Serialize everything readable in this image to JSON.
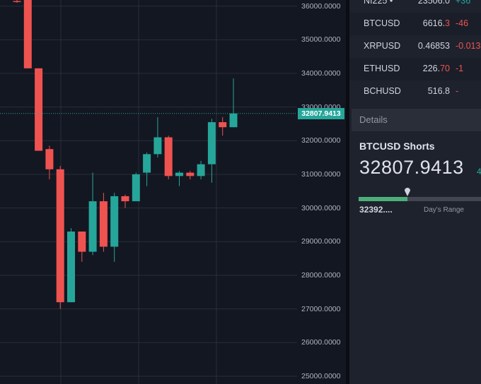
{
  "colors": {
    "up": "#26a69a",
    "down": "#ef5350",
    "background": "#131722",
    "panel": "#1e222d",
    "grid": "#2a2e39"
  },
  "chart": {
    "symbol": "BTCUSD",
    "last_price_label": "32807.9413",
    "price_ticks": [
      "36000.0000",
      "35000.0000",
      "34000.0000",
      "33000.0000",
      "32000.0000",
      "31000.0000",
      "30000.0000",
      "29000.0000",
      "28000.0000",
      "27000.0000",
      "26000.0000",
      "25000.0000"
    ]
  },
  "chart_data": {
    "type": "candlestick",
    "y_axis_labels": [
      "36000.0000",
      "35000.0000",
      "34000.0000",
      "33000.0000",
      "32000.0000",
      "31000.0000",
      "30000.0000",
      "29000.0000",
      "28000.0000",
      "27000.0000",
      "26000.0000",
      "25000.0000"
    ],
    "ylim": [
      24770,
      36180
    ],
    "last_price": 32807.9413,
    "candles": [
      {
        "o": 36150,
        "h": 36200,
        "l": 36100,
        "c": 36120
      },
      {
        "o": 36180,
        "h": 36200,
        "l": 34150,
        "c": 34150
      },
      {
        "o": 34150,
        "h": 34150,
        "l": 31700,
        "c": 31700
      },
      {
        "o": 31750,
        "h": 31850,
        "l": 30850,
        "c": 31150
      },
      {
        "o": 31150,
        "h": 31250,
        "l": 27000,
        "c": 27200
      },
      {
        "o": 27200,
        "h": 29400,
        "l": 27200,
        "c": 29300
      },
      {
        "o": 29300,
        "h": 29300,
        "l": 28400,
        "c": 28700
      },
      {
        "o": 28700,
        "h": 31050,
        "l": 28600,
        "c": 30200
      },
      {
        "o": 30200,
        "h": 30450,
        "l": 28700,
        "c": 28850
      },
      {
        "o": 28850,
        "h": 30450,
        "l": 28400,
        "c": 30350
      },
      {
        "o": 30350,
        "h": 30400,
        "l": 30000,
        "c": 30200
      },
      {
        "o": 30200,
        "h": 31050,
        "l": 30200,
        "c": 31000
      },
      {
        "o": 31050,
        "h": 31650,
        "l": 30650,
        "c": 31600
      },
      {
        "o": 31600,
        "h": 32700,
        "l": 31500,
        "c": 32100
      },
      {
        "o": 32100,
        "h": 32150,
        "l": 30850,
        "c": 30950
      },
      {
        "o": 30950,
        "h": 31100,
        "l": 30650,
        "c": 31050
      },
      {
        "o": 31050,
        "h": 31100,
        "l": 30850,
        "c": 30950
      },
      {
        "o": 30950,
        "h": 31400,
        "l": 30850,
        "c": 31300
      },
      {
        "o": 31300,
        "h": 32650,
        "l": 30750,
        "c": 32550
      },
      {
        "o": 32550,
        "h": 32700,
        "l": 32150,
        "c": 32400
      },
      {
        "o": 32400,
        "h": 33850,
        "l": 32400,
        "c": 32807.9413
      }
    ]
  },
  "watchlist": [
    {
      "symbol": "NI225 •",
      "price_main": "23506.0",
      "price_tail": "",
      "change": "+36",
      "dir": "green"
    },
    {
      "symbol": "BTCUSD",
      "price_main": "6616.",
      "price_tail": "3",
      "change": "-46",
      "dir": "red"
    },
    {
      "symbol": "XRPUSD",
      "price_main": "0.46853",
      "price_tail": "",
      "change": "-0.013",
      "dir": "red"
    },
    {
      "symbol": "ETHUSD",
      "price_main": "226.",
      "price_tail": "70",
      "change": "-1",
      "dir": "red"
    },
    {
      "symbol": "BCHUSD",
      "price_main": "516.8",
      "price_tail": "",
      "change": "-",
      "dir": "red"
    }
  ],
  "details": {
    "header": "Details",
    "title": "BTCUSD Shorts",
    "price": "32807.9413",
    "change": "4",
    "range_low": "32392....",
    "range_label": "Day's Range",
    "range_position": 0.385
  }
}
